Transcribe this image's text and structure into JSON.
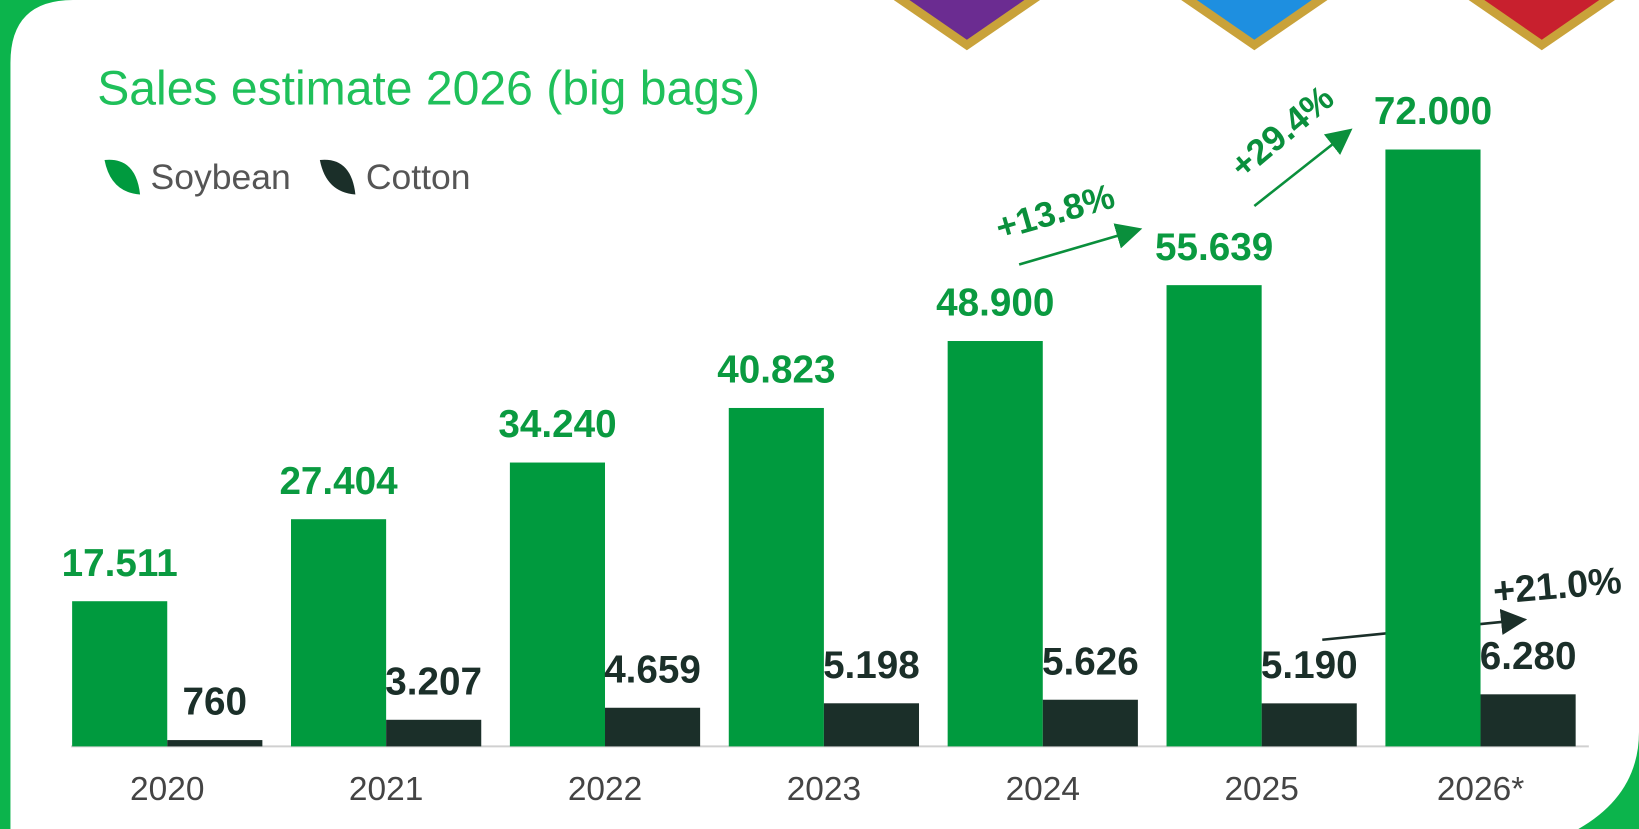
{
  "chart_data": {
    "type": "bar",
    "title": "Sales estimate 2026 (big bags)",
    "categories": [
      "2020",
      "2021",
      "2022",
      "2023",
      "2024",
      "2025",
      "2026*"
    ],
    "series": [
      {
        "name": "Soybean",
        "color": "#009a3e",
        "values": [
          17511,
          27404,
          34240,
          40823,
          48900,
          55639,
          72000
        ],
        "value_labels": [
          "17.511",
          "27.404",
          "34.240",
          "40.823",
          "48.900",
          "55.639",
          "72.000"
        ]
      },
      {
        "name": "Cotton",
        "color": "#1b2f29",
        "values": [
          760,
          3207,
          4659,
          5198,
          5626,
          5190,
          6280
        ],
        "value_labels": [
          "760",
          "3.207",
          "4.659",
          "5.198",
          "5.626",
          "5.190",
          "6.280"
        ]
      }
    ],
    "annotations": [
      "+13.8%",
      "+29.4%",
      "+21.0%"
    ]
  }
}
